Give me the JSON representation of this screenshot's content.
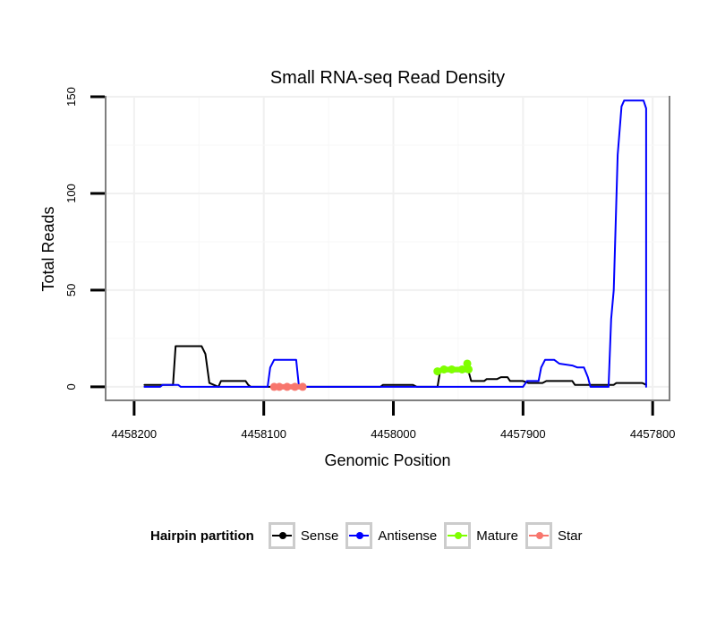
{
  "chart_data": {
    "type": "line",
    "title": "Small RNA-seq Read Density",
    "xlabel": "Genomic Position",
    "ylabel": "Total Reads",
    "xlim": [
      4458222,
      4457787
    ],
    "ylim": [
      -7,
      150
    ],
    "x_ticks": [
      4458200,
      4458100,
      4458000,
      4457900,
      4457800
    ],
    "y_ticks": [
      0,
      50,
      100,
      150
    ],
    "grid": true,
    "legend": {
      "title": "Hairpin partition",
      "position": "bottom",
      "entries": [
        "Sense",
        "Antisense",
        "Mature",
        "Star"
      ]
    },
    "series": [
      {
        "name": "Sense",
        "color": "#000000",
        "points": [
          [
            4458192,
            1
          ],
          [
            4458170,
            1
          ],
          [
            4458168,
            21
          ],
          [
            4458148,
            21
          ],
          [
            4458145,
            17
          ],
          [
            4458142,
            2
          ],
          [
            4458135,
            0
          ],
          [
            4458133,
            3
          ],
          [
            4458114,
            3
          ],
          [
            4458112,
            1
          ],
          [
            4458110,
            0
          ],
          [
            4458010,
            0
          ],
          [
            4458008,
            1
          ],
          [
            4457985,
            1
          ],
          [
            4457982,
            0
          ],
          [
            4457966,
            0
          ],
          [
            4457964,
            8
          ],
          [
            4457942,
            8
          ],
          [
            4457940,
            3
          ],
          [
            4457930,
            3
          ],
          [
            4457928,
            4
          ],
          [
            4457920,
            4
          ],
          [
            4457917,
            5
          ],
          [
            4457912,
            5
          ],
          [
            4457910,
            3
          ],
          [
            4457900,
            3
          ],
          [
            4457896,
            2
          ],
          [
            4457885,
            2
          ],
          [
            4457882,
            3
          ],
          [
            4457862,
            3
          ],
          [
            4457860,
            1
          ],
          [
            4457830,
            1
          ],
          [
            4457828,
            2
          ],
          [
            4457808,
            2
          ],
          [
            4457805,
            1
          ]
        ]
      },
      {
        "name": "Antisense",
        "color": "#0000ff",
        "points": [
          [
            4458192,
            0
          ],
          [
            4458180,
            0
          ],
          [
            4458178,
            1
          ],
          [
            4458166,
            1
          ],
          [
            4458164,
            0
          ],
          [
            4458097,
            0
          ],
          [
            4458095,
            10
          ],
          [
            4458092,
            14
          ],
          [
            4458075,
            14
          ],
          [
            4458073,
            1
          ],
          [
            4458070,
            0
          ],
          [
            4457900,
            0
          ],
          [
            4457897,
            3
          ],
          [
            4457888,
            3
          ],
          [
            4457886,
            10
          ],
          [
            4457883,
            14
          ],
          [
            4457876,
            14
          ],
          [
            4457872,
            12
          ],
          [
            4457862,
            11
          ],
          [
            4457858,
            10
          ],
          [
            4457853,
            10
          ],
          [
            4457850,
            5
          ],
          [
            4457848,
            0
          ],
          [
            4457834,
            0
          ],
          [
            4457832,
            35
          ],
          [
            4457830,
            50
          ],
          [
            4457827,
            120
          ],
          [
            4457824,
            145
          ],
          [
            4457822,
            148
          ],
          [
            4457807,
            148
          ],
          [
            4457805,
            144
          ],
          [
            4457805,
            0
          ]
        ]
      },
      {
        "name": "Mature",
        "color": "#7fff00",
        "points": [
          [
            4457966,
            8
          ],
          [
            4457961,
            9
          ],
          [
            4457955,
            9
          ],
          [
            4457947,
            9
          ],
          [
            4457942,
            9
          ],
          [
            4457943,
            12
          ]
        ]
      },
      {
        "name": "Star",
        "color": "#f8766d",
        "points": [
          [
            4458092,
            0
          ],
          [
            4458088,
            0
          ],
          [
            4458082,
            0
          ],
          [
            4458076,
            0
          ],
          [
            4458070,
            0
          ]
        ]
      }
    ]
  }
}
